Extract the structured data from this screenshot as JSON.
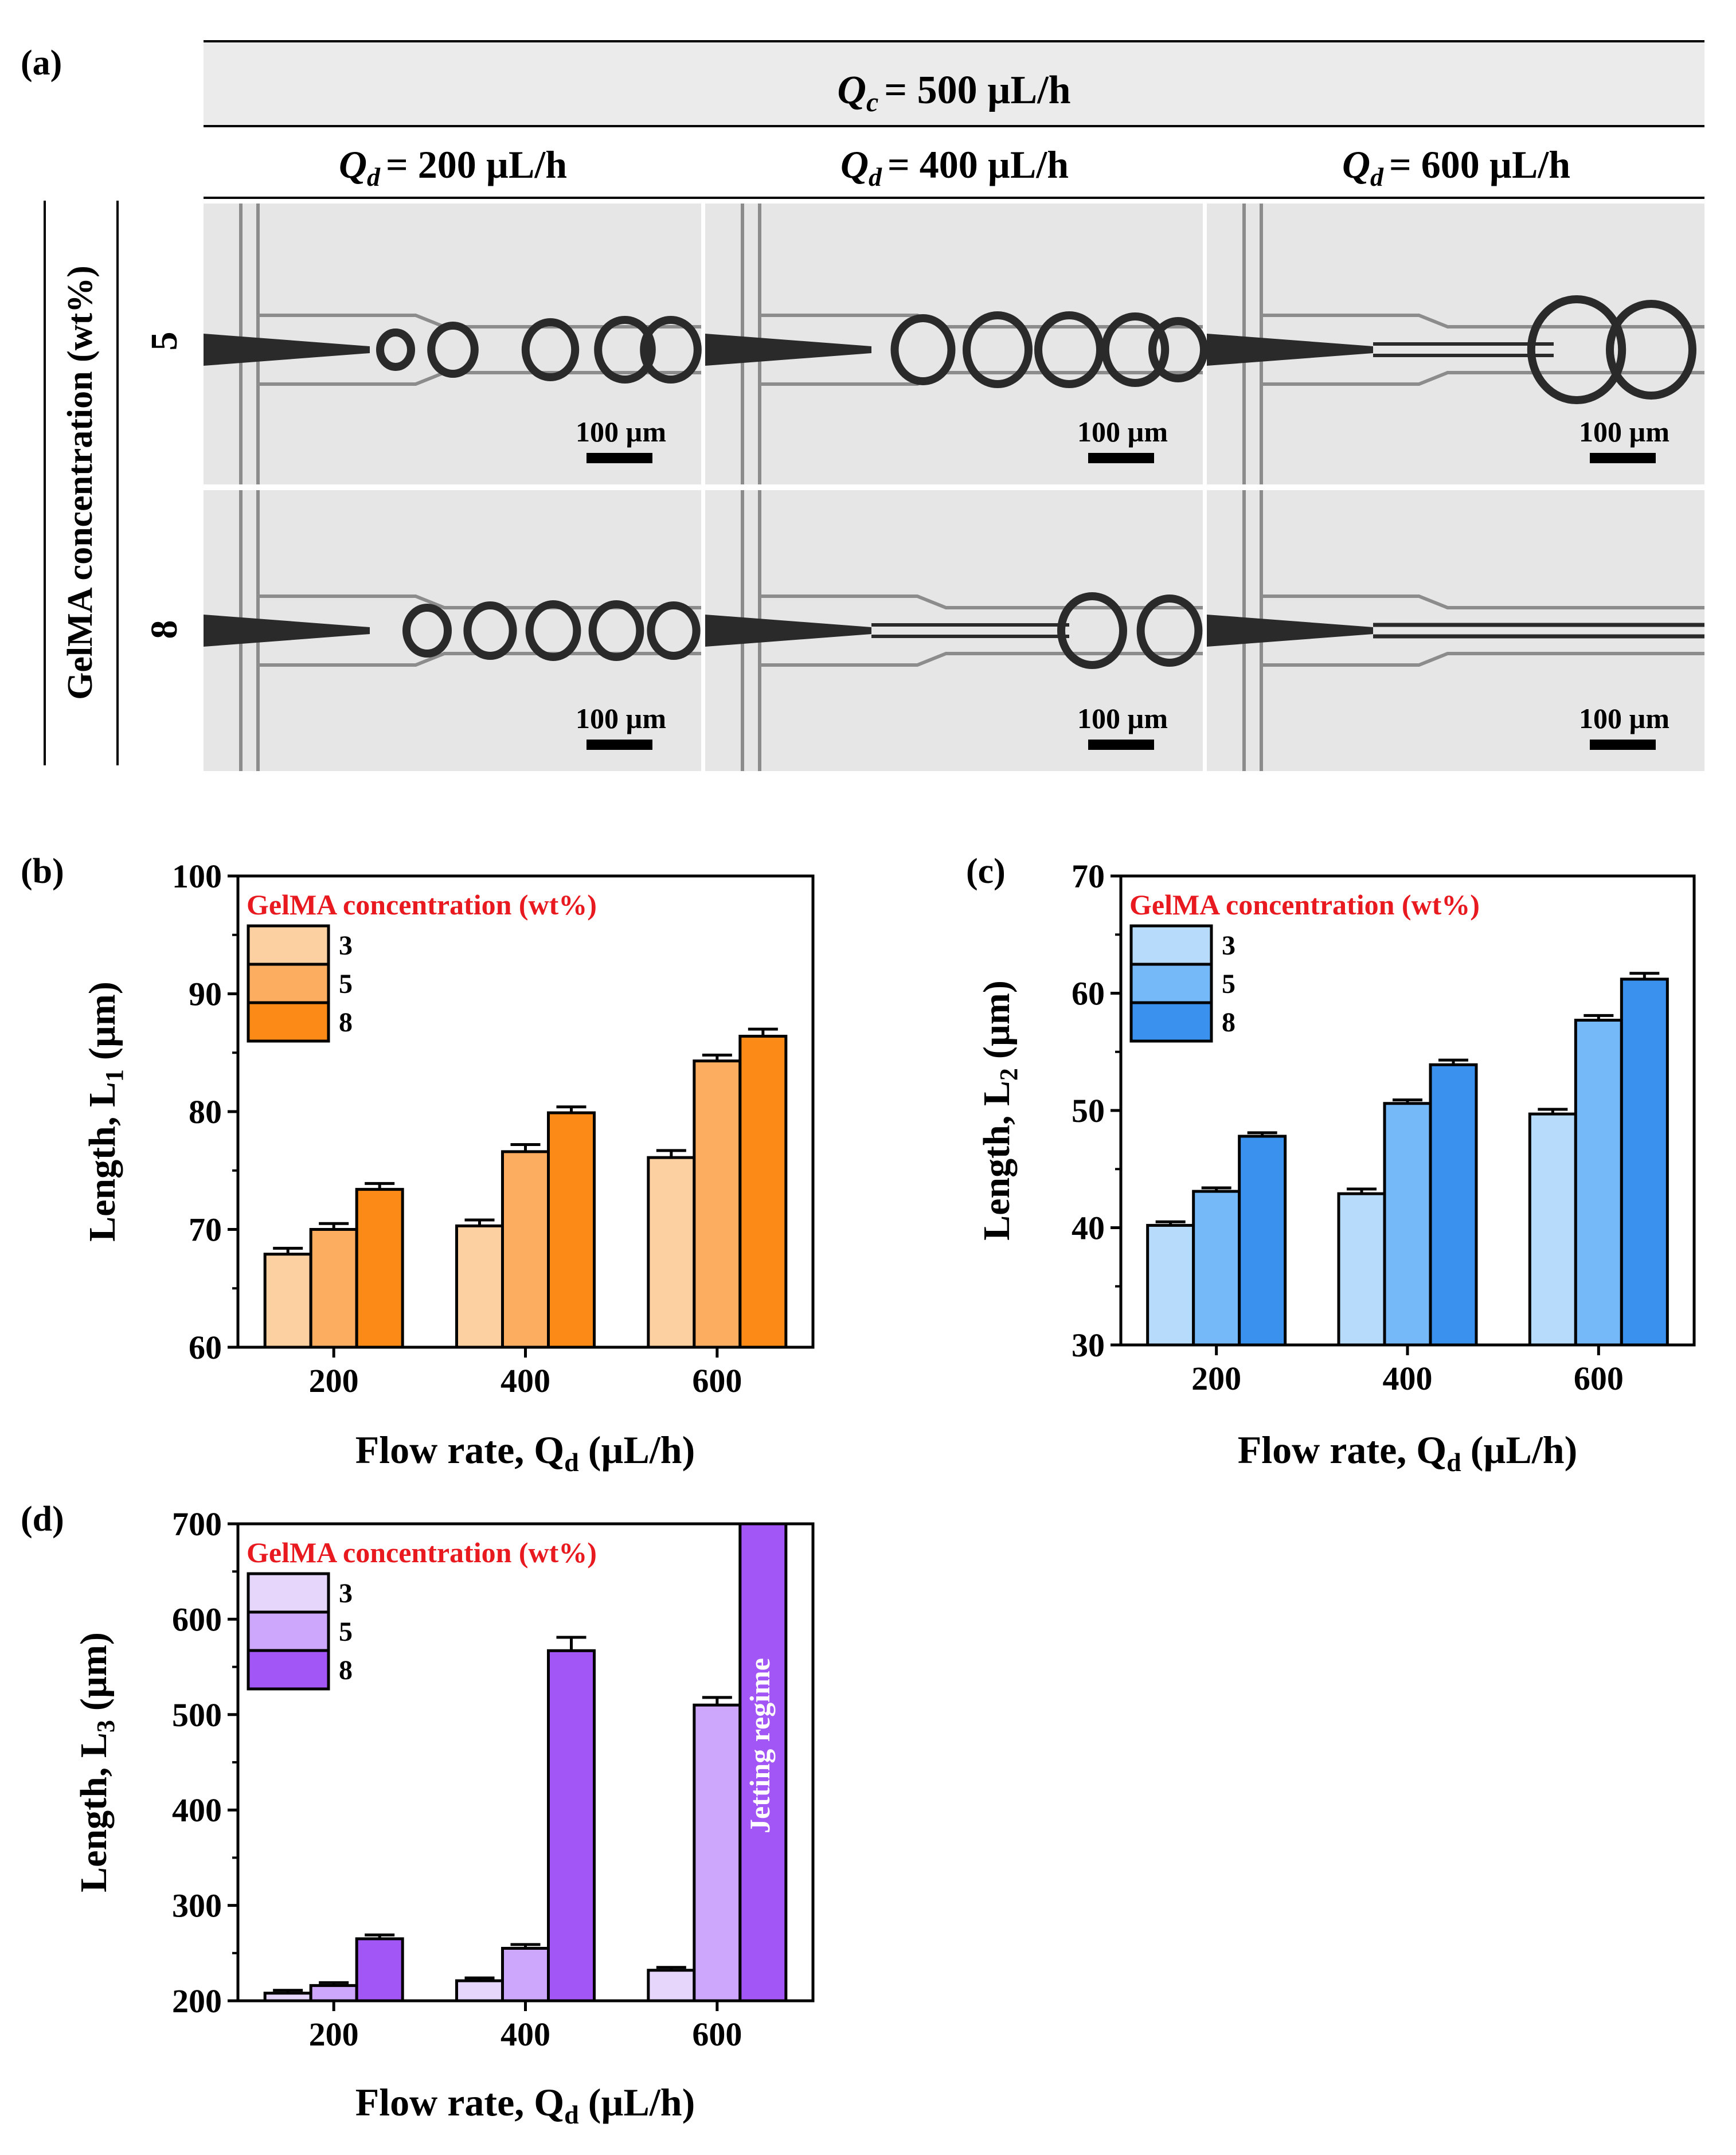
{
  "panel_a": {
    "label": "(a)",
    "qc_header": "= 500 µL/h",
    "qc_symbol": "Q",
    "qc_sub": "c",
    "qd_symbol": "Q",
    "qd_sub": "d",
    "columns": [
      "= 200 µL/h",
      "= 400 µL/h",
      "= 600 µL/h"
    ],
    "row_axis_title": "GelMA concentration (wt%)",
    "rows": [
      "5",
      "8"
    ],
    "scale_bar_label": "100 µm",
    "colors": {
      "header_bg": "#ebebeb",
      "image_bg": "#e6e6e6",
      "channel": "#8c8c8c",
      "droplet": "#2a2a2a"
    }
  },
  "chart_data": [
    {
      "panel": "(b)",
      "type": "bar",
      "categories": [
        "200",
        "400",
        "600"
      ],
      "series": [
        {
          "name": "3",
          "values": [
            67.9,
            70.3,
            76.1
          ],
          "errors": [
            0.5,
            0.5,
            0.6
          ],
          "color": "#fdd0a2"
        },
        {
          "name": "5",
          "values": [
            70.0,
            76.6,
            84.3
          ],
          "errors": [
            0.5,
            0.6,
            0.5
          ],
          "color": "#fdad5f"
        },
        {
          "name": "8",
          "values": [
            73.4,
            79.9,
            86.4
          ],
          "errors": [
            0.5,
            0.5,
            0.6
          ],
          "color": "#fb8a16"
        }
      ],
      "legend_title": "GelMA concentration (wt%)",
      "ylabel": "Length, L",
      "ylabel_sub": "1",
      "ylabel_unit": "(µm)",
      "xlabel": "Flow rate, Q",
      "xlabel_sub": "d",
      "xlabel_unit": "(µL/h)",
      "ylim": [
        60,
        100
      ],
      "yticks": [
        "60",
        "70",
        "80",
        "90",
        "100"
      ]
    },
    {
      "panel": "(c)",
      "type": "bar",
      "categories": [
        "200",
        "400",
        "600"
      ],
      "series": [
        {
          "name": "3",
          "values": [
            40.2,
            42.9,
            49.7
          ],
          "errors": [
            0.3,
            0.4,
            0.4
          ],
          "color": "#b7dbfb"
        },
        {
          "name": "5",
          "values": [
            43.1,
            50.6,
            57.7
          ],
          "errors": [
            0.3,
            0.3,
            0.4
          ],
          "color": "#76b9f8"
        },
        {
          "name": "8",
          "values": [
            47.8,
            53.9,
            61.2
          ],
          "errors": [
            0.3,
            0.4,
            0.5
          ],
          "color": "#3a92ee"
        }
      ],
      "legend_title": "GelMA concentration (wt%)",
      "ylabel": "Length, L",
      "ylabel_sub": "2",
      "ylabel_unit": "(µm)",
      "xlabel": "Flow rate, Q",
      "xlabel_sub": "d",
      "xlabel_unit": "(µL/h)",
      "ylim": [
        30,
        70
      ],
      "yticks": [
        "30",
        "40",
        "50",
        "60",
        "70"
      ]
    },
    {
      "panel": "(d)",
      "type": "bar",
      "categories": [
        "200",
        "400",
        "600"
      ],
      "series": [
        {
          "name": "3",
          "values": [
            208,
            221,
            232
          ],
          "errors": [
            3,
            3,
            3
          ],
          "color": "#e6d6fb"
        },
        {
          "name": "5",
          "values": [
            216,
            255,
            510
          ],
          "errors": [
            3,
            4,
            8
          ],
          "color": "#cda7fb"
        },
        {
          "name": "8",
          "values": [
            265,
            567,
            700
          ],
          "errors": [
            4,
            14,
            0
          ],
          "color": "#a356f6"
        }
      ],
      "legend_title": "GelMA concentration (wt%)",
      "annotation": "Jetting regime",
      "ylabel": "Length, L",
      "ylabel_sub": "3",
      "ylabel_unit": "(µm)",
      "xlabel": "Flow rate, Q",
      "xlabel_sub": "d",
      "xlabel_unit": "(µL/h)",
      "ylim": [
        200,
        700
      ],
      "yticks": [
        "200",
        "300",
        "400",
        "500",
        "600",
        "700"
      ]
    }
  ]
}
